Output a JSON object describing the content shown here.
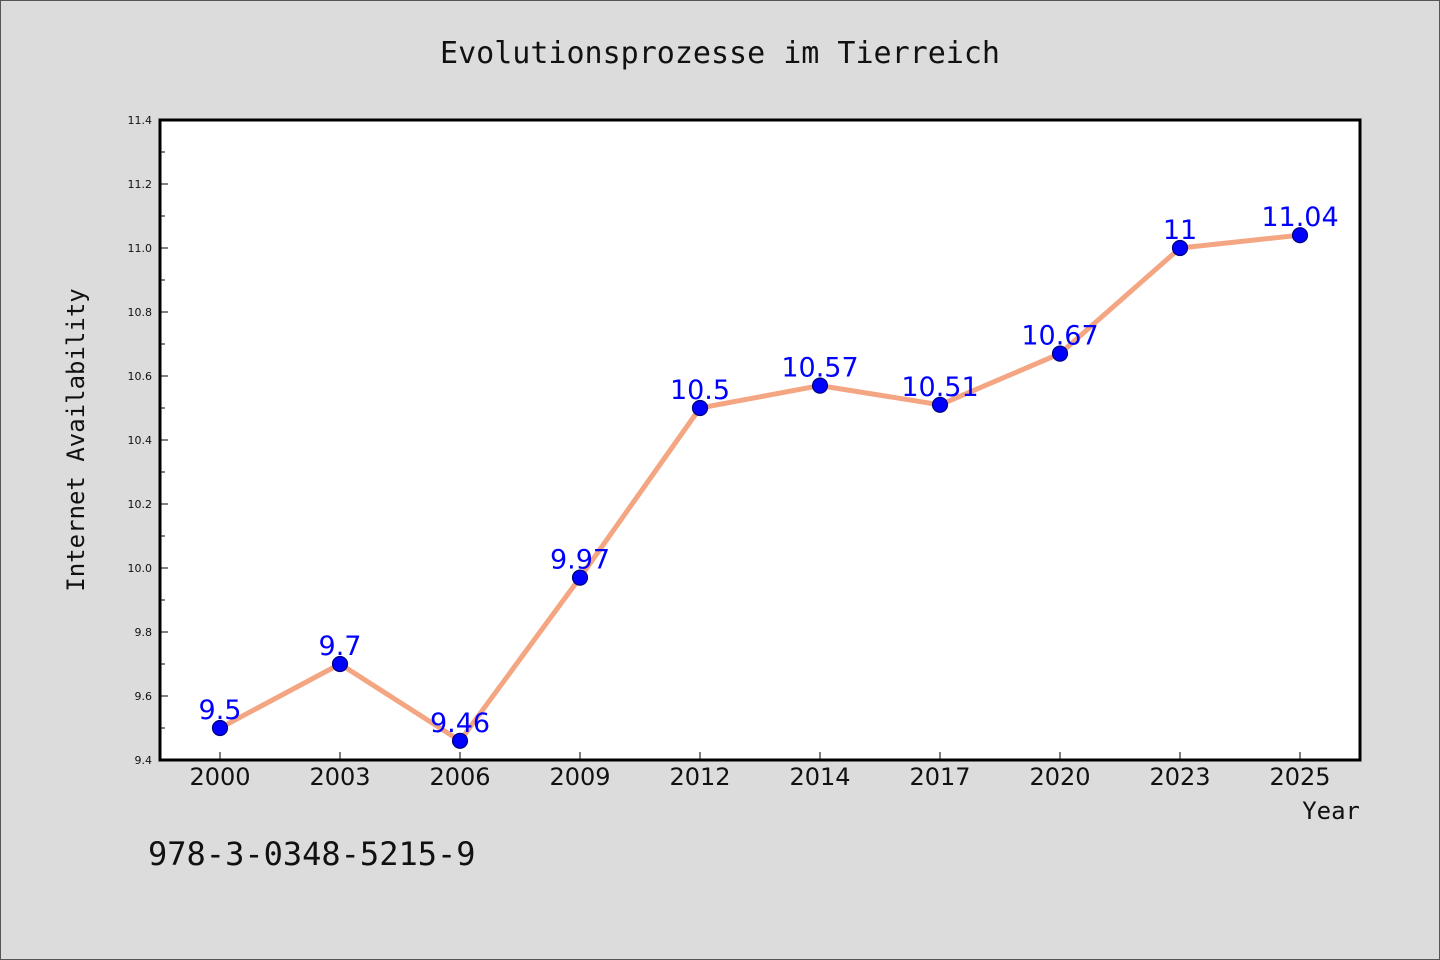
{
  "chart_data": {
    "type": "line",
    "title": "Evolutionsprozesse im Tierreich",
    "xlabel": "Year",
    "ylabel": "Internet Availability",
    "categories": [
      "2000",
      "2003",
      "2006",
      "2009",
      "2012",
      "2014",
      "2017",
      "2020",
      "2023",
      "2025"
    ],
    "series": [
      {
        "values": [
          9.5,
          9.7,
          9.46,
          9.97,
          10.5,
          10.57,
          10.51,
          10.67,
          11,
          11.04
        ],
        "labels": [
          "9.5",
          "9.7",
          "9.46",
          "9.97",
          "10.5",
          "10.57",
          "10.51",
          "10.67",
          "11",
          "11.04"
        ]
      }
    ],
    "ylim": [
      9.4,
      11.4
    ],
    "yticks": [
      "9.4",
      "9.6",
      "9.8",
      "10.0",
      "10.2",
      "10.4",
      "10.6",
      "10.8",
      "11.0",
      "11.2",
      "11.4"
    ],
    "grid": false,
    "colors": {
      "line": "#f4a582",
      "marker": "#0000ff",
      "marker_edge": "#00007a",
      "labels": "#0000ff",
      "background": "#dcdcdc",
      "plot_area": "#ffffff"
    }
  },
  "footer": {
    "isbn": "978-3-0348-5215-9"
  }
}
